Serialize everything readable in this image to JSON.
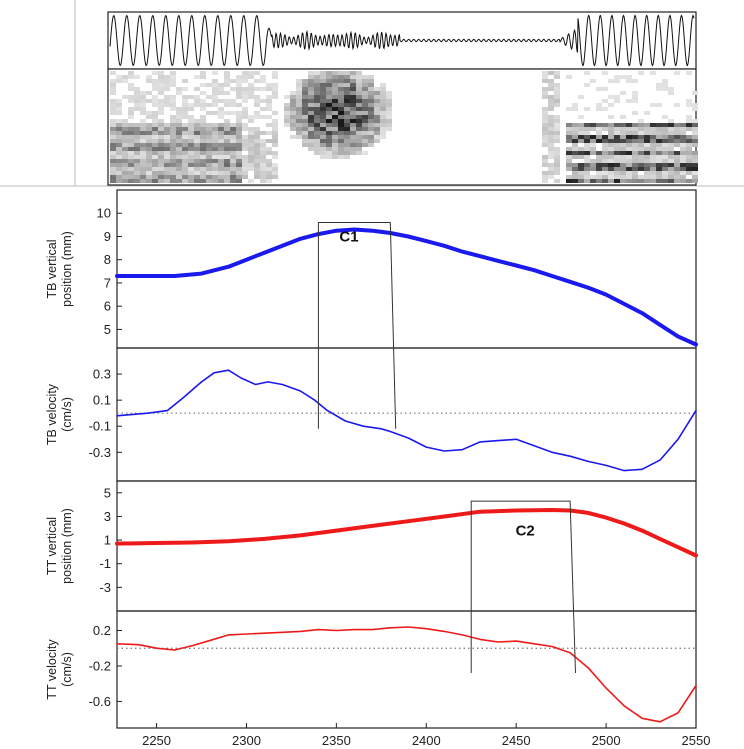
{
  "colors": {
    "tb": "#1a1aee",
    "tt": "#ee1a1a",
    "frame": "#222222",
    "zero_line": "#777777"
  },
  "audio": {
    "waveform_note": "",
    "spectrogram_note": ""
  },
  "chart_data": [
    {
      "type": "line",
      "id": "tb_position",
      "ylabel_lines": [
        "TB vertical",
        "position (mm)"
      ],
      "ylim": [
        4.2,
        11
      ],
      "yticks": [
        5,
        6,
        7,
        8,
        9,
        10
      ],
      "xlim": [
        2228,
        2550
      ],
      "series": [
        {
          "color": "tb",
          "width": 4,
          "x": [
            2228,
            2240,
            2260,
            2275,
            2290,
            2300,
            2310,
            2320,
            2330,
            2340,
            2350,
            2360,
            2370,
            2380,
            2390,
            2400,
            2410,
            2420,
            2430,
            2440,
            2450,
            2460,
            2470,
            2480,
            2490,
            2500,
            2510,
            2520,
            2530,
            2540,
            2550
          ],
          "y": [
            7.3,
            7.3,
            7.3,
            7.4,
            7.7,
            8.0,
            8.3,
            8.6,
            8.9,
            9.1,
            9.25,
            9.3,
            9.25,
            9.15,
            9.0,
            8.8,
            8.6,
            8.35,
            8.15,
            7.95,
            7.75,
            7.55,
            7.3,
            7.05,
            6.8,
            6.5,
            6.1,
            5.7,
            5.2,
            4.7,
            4.35
          ]
        }
      ],
      "annotation": {
        "text": "C1",
        "x": 2357,
        "y": 9.0
      }
    },
    {
      "type": "line",
      "id": "tb_velocity",
      "ylabel_lines": [
        "TB velocity",
        "(cm/s)"
      ],
      "ylim": [
        -0.52,
        0.5
      ],
      "yticks": [
        0.3,
        0.1,
        -0.1,
        -0.3
      ],
      "ytick_labels": [
        "0.3",
        "0.1",
        "-0.1",
        "-0.3"
      ],
      "xlim": [
        2228,
        2550
      ],
      "zero_line": true,
      "series": [
        {
          "color": "tb",
          "width": 1.6,
          "x": [
            2228,
            2245,
            2256,
            2265,
            2275,
            2282,
            2290,
            2297,
            2305,
            2312,
            2320,
            2330,
            2338,
            2345,
            2355,
            2365,
            2375,
            2380,
            2390,
            2400,
            2410,
            2420,
            2430,
            2440,
            2450,
            2460,
            2470,
            2480,
            2490,
            2500,
            2510,
            2520,
            2530,
            2540,
            2550
          ],
          "y": [
            -0.02,
            0.0,
            0.02,
            0.12,
            0.24,
            0.31,
            0.33,
            0.27,
            0.22,
            0.24,
            0.22,
            0.17,
            0.1,
            0.02,
            -0.06,
            -0.1,
            -0.12,
            -0.14,
            -0.19,
            -0.26,
            -0.29,
            -0.28,
            -0.22,
            -0.21,
            -0.2,
            -0.25,
            -0.3,
            -0.33,
            -0.37,
            -0.4,
            -0.44,
            -0.43,
            -0.36,
            -0.2,
            0.02
          ]
        }
      ]
    },
    {
      "type": "line",
      "id": "tt_position",
      "ylabel_lines": [
        "TT vertical",
        "position (mm)"
      ],
      "ylim": [
        -5,
        6
      ],
      "yticks": [
        5,
        3,
        1,
        -1,
        -3
      ],
      "xlim": [
        2228,
        2550
      ],
      "series": [
        {
          "color": "tt",
          "width": 4,
          "x": [
            2228,
            2250,
            2270,
            2290,
            2310,
            2330,
            2350,
            2370,
            2390,
            2410,
            2430,
            2450,
            2470,
            2480,
            2490,
            2500,
            2510,
            2520,
            2530,
            2540,
            2550
          ],
          "y": [
            0.7,
            0.75,
            0.8,
            0.9,
            1.1,
            1.4,
            1.8,
            2.2,
            2.6,
            3.0,
            3.4,
            3.5,
            3.55,
            3.5,
            3.3,
            2.9,
            2.4,
            1.8,
            1.1,
            0.4,
            -0.3
          ]
        }
      ],
      "annotation": {
        "text": "C2",
        "x": 2455,
        "y": 1.8
      }
    },
    {
      "type": "line",
      "id": "tt_velocity",
      "ylabel_lines": [
        "TT velocity",
        "(cm/s)"
      ],
      "ylim": [
        -0.9,
        0.42
      ],
      "yticks": [
        0.2,
        -0.2,
        -0.6
      ],
      "ytick_labels": [
        "0.2",
        "-0.2",
        "-0.6"
      ],
      "xlim": [
        2228,
        2550
      ],
      "xticks": [
        2250,
        2300,
        2350,
        2400,
        2450,
        2500,
        2550
      ],
      "zero_line": true,
      "series": [
        {
          "color": "tt",
          "width": 1.6,
          "x": [
            2228,
            2240,
            2250,
            2260,
            2270,
            2280,
            2290,
            2300,
            2310,
            2320,
            2330,
            2340,
            2350,
            2360,
            2370,
            2380,
            2390,
            2400,
            2410,
            2420,
            2430,
            2440,
            2450,
            2460,
            2470,
            2480,
            2490,
            2500,
            2510,
            2520,
            2530,
            2540,
            2550
          ],
          "y": [
            0.05,
            0.04,
            0.0,
            -0.02,
            0.03,
            0.09,
            0.15,
            0.16,
            0.17,
            0.18,
            0.19,
            0.21,
            0.2,
            0.21,
            0.21,
            0.23,
            0.24,
            0.22,
            0.19,
            0.15,
            0.1,
            0.07,
            0.08,
            0.05,
            0.02,
            -0.05,
            -0.22,
            -0.45,
            -0.65,
            -0.79,
            -0.83,
            -0.73,
            -0.42
          ]
        }
      ]
    }
  ],
  "boxes": [
    {
      "label_ref": "C1",
      "x0": 2340,
      "x1": 2380,
      "x1_bottom": 2383,
      "from_panel": 0,
      "to_panel": 1,
      "y_top": 9.6,
      "y_bottom": -0.12
    },
    {
      "label_ref": "C2",
      "x0": 2425,
      "x1": 2480,
      "x1_bottom": 2483,
      "from_panel": 2,
      "to_panel": 3,
      "y_top": 4.3,
      "y_bottom": -0.28
    }
  ]
}
